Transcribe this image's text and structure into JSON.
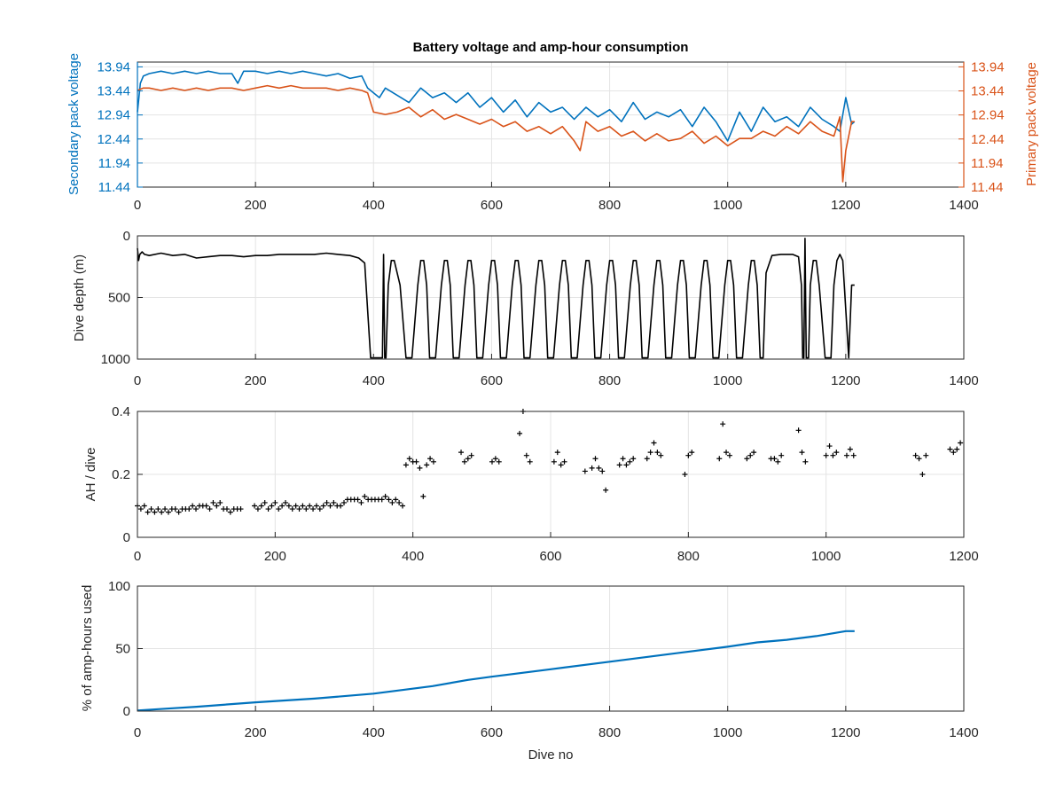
{
  "figure": {
    "title": "Battery voltage and amp-hour consumption"
  },
  "colors": {
    "blue": "#0072BD",
    "orange": "#D95319",
    "black": "#000000",
    "grid": "#e4e4e4",
    "axis": "#262626"
  },
  "chart_data": [
    {
      "type": "line",
      "title": "Battery voltage and amp-hour consumption",
      "xlabel": "",
      "ylabel": "Secondary pack voltage",
      "ylabel_right": "Primary pack voltage",
      "xlim": [
        0,
        1400
      ],
      "ylim": [
        11.44,
        14.04
      ],
      "xticks": [
        "0",
        "200",
        "400",
        "600",
        "800",
        "1000",
        "1200",
        "1400"
      ],
      "yticks": [
        "11.44",
        "11.94",
        "12.44",
        "12.94",
        "13.44",
        "13.94"
      ],
      "yticks_right": [
        "11.44",
        "11.94",
        "12.44",
        "12.94",
        "13.44",
        "13.94"
      ],
      "grid": true,
      "series": [
        {
          "name": "Secondary pack voltage",
          "color": "#0072BD",
          "x": [
            0,
            5,
            10,
            20,
            40,
            60,
            80,
            100,
            120,
            140,
            160,
            170,
            180,
            200,
            220,
            240,
            260,
            280,
            300,
            320,
            340,
            360,
            380,
            390,
            400,
            410,
            420,
            440,
            460,
            480,
            500,
            520,
            540,
            560,
            580,
            600,
            620,
            640,
            660,
            680,
            700,
            720,
            740,
            760,
            780,
            800,
            820,
            840,
            860,
            880,
            900,
            920,
            940,
            960,
            980,
            1000,
            1020,
            1040,
            1060,
            1080,
            1100,
            1120,
            1140,
            1160,
            1180,
            1190,
            1200,
            1210,
            1215
          ],
          "y": [
            13.0,
            13.6,
            13.75,
            13.8,
            13.85,
            13.8,
            13.85,
            13.8,
            13.85,
            13.8,
            13.8,
            13.6,
            13.85,
            13.85,
            13.8,
            13.85,
            13.8,
            13.85,
            13.8,
            13.75,
            13.8,
            13.7,
            13.75,
            13.5,
            13.4,
            13.3,
            13.5,
            13.35,
            13.2,
            13.5,
            13.3,
            13.4,
            13.2,
            13.4,
            13.1,
            13.3,
            13.0,
            13.25,
            12.9,
            13.2,
            13.0,
            13.1,
            12.85,
            13.1,
            12.9,
            13.05,
            12.8,
            13.2,
            12.85,
            13.0,
            12.9,
            13.05,
            12.7,
            13.1,
            12.8,
            12.4,
            13.0,
            12.6,
            13.1,
            12.8,
            12.9,
            12.7,
            13.1,
            12.85,
            12.7,
            12.6,
            13.3,
            12.75,
            12.8
          ]
        },
        {
          "name": "Primary pack voltage",
          "color": "#D95319",
          "x": [
            0,
            10,
            20,
            40,
            60,
            80,
            100,
            120,
            140,
            160,
            180,
            200,
            220,
            240,
            260,
            280,
            300,
            320,
            340,
            360,
            380,
            390,
            400,
            420,
            440,
            460,
            480,
            500,
            520,
            540,
            560,
            580,
            600,
            620,
            640,
            660,
            680,
            700,
            720,
            740,
            750,
            760,
            780,
            800,
            820,
            840,
            860,
            880,
            900,
            920,
            940,
            960,
            980,
            1000,
            1020,
            1040,
            1060,
            1080,
            1100,
            1120,
            1140,
            1160,
            1180,
            1190,
            1195,
            1200,
            1210,
            1215
          ],
          "y": [
            13.45,
            13.5,
            13.5,
            13.45,
            13.5,
            13.45,
            13.5,
            13.45,
            13.5,
            13.5,
            13.45,
            13.5,
            13.55,
            13.5,
            13.55,
            13.5,
            13.5,
            13.5,
            13.45,
            13.5,
            13.45,
            13.4,
            13.0,
            12.95,
            13.0,
            13.1,
            12.9,
            13.05,
            12.85,
            12.95,
            12.85,
            12.75,
            12.85,
            12.7,
            12.8,
            12.6,
            12.7,
            12.55,
            12.7,
            12.4,
            12.2,
            12.8,
            12.6,
            12.7,
            12.5,
            12.6,
            12.4,
            12.55,
            12.4,
            12.45,
            12.6,
            12.35,
            12.5,
            12.3,
            12.45,
            12.45,
            12.6,
            12.5,
            12.7,
            12.55,
            12.8,
            12.6,
            12.5,
            12.9,
            11.55,
            12.2,
            12.8,
            12.8
          ]
        }
      ]
    },
    {
      "type": "line",
      "title": "",
      "xlabel": "",
      "ylabel": "Dive depth (m)",
      "xlim": [
        0,
        1400
      ],
      "ylim": [
        0,
        1000
      ],
      "y_reversed": true,
      "xticks": [
        "0",
        "200",
        "400",
        "600",
        "800",
        "1000",
        "1200",
        "1400"
      ],
      "yticks": [
        "0",
        "500",
        "1000"
      ],
      "grid": true,
      "series": [
        {
          "color": "#000000",
          "x": [
            0,
            2,
            4,
            8,
            12,
            20,
            40,
            60,
            80,
            100,
            120,
            140,
            160,
            180,
            200,
            220,
            240,
            260,
            280,
            300,
            320,
            340,
            360,
            375,
            385,
            390,
            395,
            400,
            410,
            415,
            417,
            419,
            421,
            425,
            430,
            435,
            445,
            455,
            465,
            475,
            480,
            485,
            490,
            495,
            505,
            515,
            520,
            525,
            530,
            535,
            545,
            555,
            560,
            565,
            570,
            575,
            585,
            595,
            600,
            605,
            610,
            615,
            625,
            635,
            640,
            645,
            650,
            655,
            665,
            675,
            680,
            685,
            690,
            695,
            705,
            715,
            720,
            725,
            730,
            735,
            745,
            755,
            760,
            765,
            770,
            775,
            785,
            795,
            800,
            805,
            810,
            815,
            825,
            835,
            840,
            845,
            850,
            855,
            865,
            875,
            880,
            885,
            890,
            895,
            905,
            915,
            920,
            925,
            930,
            935,
            945,
            955,
            960,
            965,
            970,
            975,
            985,
            995,
            1000,
            1005,
            1010,
            1015,
            1025,
            1035,
            1040,
            1045,
            1050,
            1055,
            1060,
            1065,
            1075,
            1090,
            1110,
            1120,
            1125,
            1127,
            1129,
            1131,
            1133,
            1135,
            1137,
            1140,
            1145,
            1150,
            1155,
            1165,
            1175,
            1180,
            1185,
            1190,
            1195,
            1205,
            1210,
            1215
          ],
          "y": [
            100,
            200,
            150,
            130,
            150,
            160,
            140,
            160,
            150,
            180,
            170,
            160,
            160,
            170,
            160,
            160,
            150,
            150,
            150,
            150,
            140,
            150,
            160,
            180,
            220,
            600,
            990,
            990,
            990,
            990,
            150,
            990,
            990,
            400,
            200,
            200,
            400,
            990,
            990,
            400,
            200,
            200,
            400,
            990,
            990,
            400,
            200,
            200,
            400,
            990,
            990,
            400,
            200,
            200,
            400,
            990,
            990,
            400,
            200,
            200,
            400,
            990,
            990,
            400,
            200,
            200,
            400,
            990,
            990,
            400,
            200,
            200,
            400,
            990,
            990,
            400,
            200,
            200,
            400,
            990,
            990,
            400,
            200,
            200,
            400,
            990,
            990,
            400,
            200,
            200,
            400,
            990,
            990,
            400,
            200,
            200,
            400,
            990,
            990,
            400,
            200,
            200,
            400,
            990,
            990,
            400,
            200,
            200,
            400,
            990,
            990,
            400,
            200,
            200,
            400,
            990,
            990,
            400,
            200,
            200,
            400,
            990,
            990,
            400,
            200,
            200,
            400,
            990,
            990,
            300,
            160,
            150,
            150,
            170,
            400,
            990,
            990,
            20,
            990,
            990,
            990,
            400,
            200,
            200,
            400,
            990,
            990,
            400,
            200,
            150,
            200,
            990,
            400,
            400
          ]
        }
      ]
    },
    {
      "type": "scatter",
      "title": "",
      "xlabel": "",
      "ylabel": "AH / dive",
      "xlim": [
        0,
        1200
      ],
      "ylim": [
        0,
        0.4
      ],
      "xticks": [
        "0",
        "200",
        "400",
        "600",
        "800",
        "1000",
        "1200"
      ],
      "yticks": [
        "0",
        "0.2",
        "0.4"
      ],
      "grid": true,
      "series": [
        {
          "color": "#000000",
          "marker": "+",
          "x": [
            0,
            5,
            10,
            15,
            20,
            25,
            30,
            35,
            40,
            45,
            50,
            55,
            60,
            65,
            70,
            75,
            80,
            85,
            90,
            95,
            100,
            105,
            110,
            115,
            120,
            125,
            130,
            135,
            140,
            145,
            150,
            170,
            175,
            180,
            185,
            190,
            195,
            200,
            205,
            210,
            215,
            220,
            225,
            230,
            235,
            240,
            245,
            250,
            255,
            260,
            265,
            270,
            275,
            280,
            285,
            290,
            295,
            300,
            305,
            310,
            315,
            320,
            325,
            330,
            335,
            340,
            345,
            350,
            355,
            360,
            365,
            370,
            375,
            380,
            385,
            390,
            395,
            400,
            405,
            410,
            415,
            420,
            425,
            430,
            470,
            475,
            480,
            485,
            515,
            520,
            525,
            555,
            560,
            565,
            570,
            605,
            610,
            615,
            620,
            650,
            660,
            665,
            670,
            675,
            680,
            700,
            705,
            710,
            715,
            720,
            740,
            745,
            750,
            755,
            760,
            795,
            800,
            805,
            845,
            850,
            855,
            860,
            885,
            890,
            895,
            920,
            925,
            930,
            935,
            960,
            965,
            970,
            1000,
            1005,
            1010,
            1015,
            1030,
            1035,
            1040,
            1130,
            1135,
            1140,
            1145,
            1180,
            1185,
            1190,
            1195
          ],
          "y": [
            0.1,
            0.09,
            0.1,
            0.08,
            0.09,
            0.08,
            0.09,
            0.08,
            0.09,
            0.08,
            0.09,
            0.09,
            0.08,
            0.09,
            0.09,
            0.09,
            0.1,
            0.09,
            0.1,
            0.1,
            0.1,
            0.09,
            0.11,
            0.1,
            0.11,
            0.09,
            0.09,
            0.08,
            0.09,
            0.09,
            0.09,
            0.1,
            0.09,
            0.1,
            0.11,
            0.09,
            0.1,
            0.11,
            0.09,
            0.1,
            0.11,
            0.1,
            0.09,
            0.1,
            0.09,
            0.1,
            0.09,
            0.1,
            0.09,
            0.1,
            0.09,
            0.1,
            0.11,
            0.1,
            0.11,
            0.1,
            0.1,
            0.11,
            0.12,
            0.12,
            0.12,
            0.12,
            0.11,
            0.13,
            0.12,
            0.12,
            0.12,
            0.12,
            0.12,
            0.13,
            0.12,
            0.11,
            0.12,
            0.11,
            0.1,
            0.23,
            0.25,
            0.24,
            0.24,
            0.22,
            0.13,
            0.23,
            0.25,
            0.24,
            0.27,
            0.24,
            0.25,
            0.26,
            0.24,
            0.25,
            0.24,
            0.33,
            0.4,
            0.26,
            0.24,
            0.24,
            0.27,
            0.23,
            0.24,
            0.21,
            0.22,
            0.25,
            0.22,
            0.21,
            0.15,
            0.23,
            0.25,
            0.23,
            0.24,
            0.25,
            0.25,
            0.27,
            0.3,
            0.27,
            0.26,
            0.2,
            0.26,
            0.27,
            0.25,
            0.36,
            0.27,
            0.26,
            0.25,
            0.26,
            0.27,
            0.25,
            0.25,
            0.24,
            0.26,
            0.34,
            0.27,
            0.24,
            0.26,
            0.29,
            0.26,
            0.27,
            0.26,
            0.28,
            0.26,
            0.26,
            0.25,
            0.2,
            0.26,
            0.28,
            0.27,
            0.28,
            0.3
          ]
        }
      ]
    },
    {
      "type": "line",
      "title": "",
      "xlabel": "Dive no",
      "ylabel": "% of amp-hours used",
      "xlim": [
        0,
        1400
      ],
      "ylim": [
        0,
        100
      ],
      "xticks": [
        "0",
        "200",
        "400",
        "600",
        "800",
        "1000",
        "1200",
        "1400"
      ],
      "yticks": [
        "0",
        "50",
        "100"
      ],
      "grid": true,
      "series": [
        {
          "color": "#0072BD",
          "x": [
            0,
            50,
            100,
            200,
            300,
            400,
            500,
            560,
            600,
            700,
            800,
            900,
            1000,
            1050,
            1100,
            1150,
            1200,
            1215
          ],
          "y": [
            0.5,
            2,
            3.5,
            7,
            10,
            14,
            20,
            25,
            27.5,
            33.5,
            39.5,
            45.5,
            51.5,
            55,
            57,
            60,
            64,
            64
          ]
        }
      ]
    }
  ]
}
